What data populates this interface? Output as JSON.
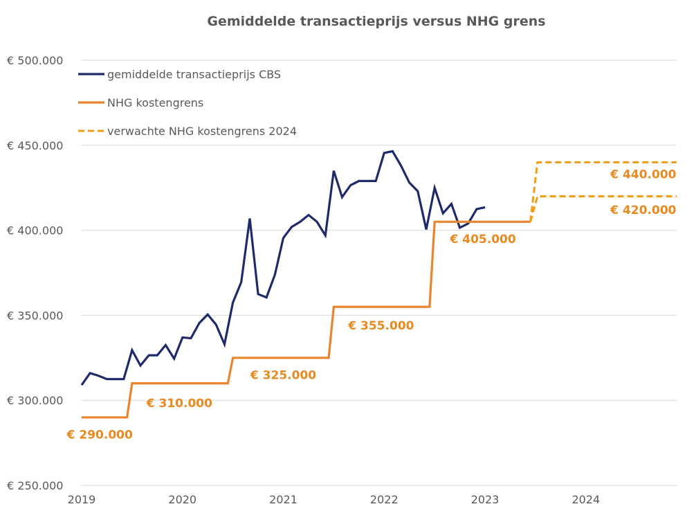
{
  "chart_data": {
    "type": "line",
    "title": "Gemiddelde transactieprijs versus NHG grens",
    "xlabel": "",
    "ylabel": "",
    "xlim": [
      2019.0,
      2024.9
    ],
    "ylim": [
      250000,
      500000
    ],
    "y_ticks": [
      {
        "value": 500000,
        "label": "€ 500.000"
      },
      {
        "value": 450000,
        "label": "€ 450.000"
      },
      {
        "value": 400000,
        "label": "€ 400.000"
      },
      {
        "value": 350000,
        "label": "€ 350.000"
      },
      {
        "value": 300000,
        "label": "€ 300.000"
      },
      {
        "value": 250000,
        "label": "€ 250.000"
      }
    ],
    "x_ticks": [
      {
        "value": 2019,
        "label": "2019"
      },
      {
        "value": 2020,
        "label": "2020"
      },
      {
        "value": 2021,
        "label": "2021"
      },
      {
        "value": 2022,
        "label": "2022"
      },
      {
        "value": 2023,
        "label": "2023"
      },
      {
        "value": 2024,
        "label": "2024"
      }
    ],
    "grid": true,
    "legend_position": "top-left",
    "series": [
      {
        "name": "gemiddelde transactieprijs CBS",
        "color": "#1F2A6B",
        "style": "solid",
        "x": [
          2019.0,
          2019.083,
          2019.167,
          2019.25,
          2019.333,
          2019.417,
          2019.5,
          2019.583,
          2019.667,
          2019.75,
          2019.833,
          2019.917,
          2020.0,
          2020.083,
          2020.167,
          2020.25,
          2020.333,
          2020.417,
          2020.5,
          2020.583,
          2020.667,
          2020.75,
          2020.833,
          2020.917,
          2021.0,
          2021.083,
          2021.167,
          2021.25,
          2021.333,
          2021.417,
          2021.5,
          2021.583,
          2021.667,
          2021.75,
          2021.833,
          2021.917,
          2022.0,
          2022.083,
          2022.167,
          2022.25,
          2022.333,
          2022.417,
          2022.5,
          2022.583,
          2022.667,
          2022.75,
          2022.833,
          2022.917,
          2023.0
        ],
        "values": [
          309000,
          316000,
          314500,
          312500,
          312500,
          312500,
          329500,
          320500,
          326500,
          326500,
          332500,
          324500,
          337000,
          336500,
          345500,
          350500,
          344500,
          333000,
          357500,
          369500,
          407000,
          362500,
          360500,
          374000,
          395500,
          402000,
          405000,
          409000,
          405000,
          397000,
          435000,
          419500,
          426500,
          429000,
          429000,
          429000,
          445500,
          446500,
          438000,
          428000,
          423000,
          400500,
          425000,
          410000,
          415500,
          401500,
          404000,
          412500,
          413500
        ]
      },
      {
        "name": "NHG kostengrens",
        "color": "#E9842C",
        "style": "solid",
        "x": [
          2019.0,
          2019.45,
          2019.5,
          2020.45,
          2020.5,
          2021.45,
          2021.5,
          2022.45,
          2022.5,
          2023.45
        ],
        "values": [
          290000,
          290000,
          310000,
          310000,
          325000,
          325000,
          355000,
          355000,
          405000,
          405000
        ]
      },
      {
        "name": "verwachte NHG kostengrens 2024",
        "color": "#F39C12",
        "style": "dashed",
        "branches": [
          {
            "x": [
              2023.45,
              2023.52,
              2024.0,
              2024.9
            ],
            "values": [
              405000,
              440000,
              440000,
              440000
            ]
          },
          {
            "x": [
              2023.45,
              2023.52,
              2024.0,
              2024.9
            ],
            "values": [
              405000,
              420000,
              420000,
              420000
            ]
          }
        ]
      }
    ],
    "annotations": [
      {
        "text": "€ 290.000",
        "x": 2019.18,
        "y": 280000
      },
      {
        "text": "€ 310.000",
        "x": 2019.97,
        "y": 298500
      },
      {
        "text": "€ 325.000",
        "x": 2021.0,
        "y": 315000
      },
      {
        "text": "€ 355.000",
        "x": 2021.97,
        "y": 344000
      },
      {
        "text": "€ 405.000",
        "x": 2022.98,
        "y": 395000
      },
      {
        "text": "€ 440.000",
        "x": 2024.57,
        "y": 433000
      },
      {
        "text": "€ 420.000",
        "x": 2024.57,
        "y": 412000
      }
    ]
  }
}
